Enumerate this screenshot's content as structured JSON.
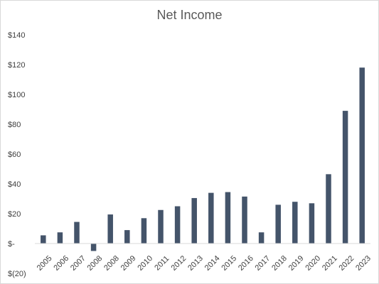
{
  "chart_data": {
    "type": "bar",
    "title": "Net Income",
    "xlabel": "",
    "ylabel": "",
    "categories": [
      "2005",
      "2006",
      "2007",
      "2008",
      "2008",
      "2009",
      "2010",
      "2011",
      "2012",
      "2013",
      "2014",
      "2015",
      "2016",
      "2017",
      "2018",
      "2019",
      "2020",
      "2021",
      "2022",
      "2023"
    ],
    "values": [
      5.5,
      7.5,
      14.5,
      -5,
      19.5,
      9,
      17,
      22.5,
      25,
      30.5,
      34,
      34.5,
      31.5,
      7.5,
      26,
      28,
      27,
      46.5,
      89,
      118
    ],
    "ylim": [
      -20,
      140
    ],
    "yticks": [
      -20,
      0,
      20,
      40,
      60,
      80,
      100,
      120,
      140
    ],
    "ytick_labels": [
      "$(20)",
      "$-",
      "$20",
      "$40",
      "$60",
      "$80",
      "$100",
      "$120",
      "$140"
    ],
    "bar_color": "#44546a",
    "axis_color": "#d9d9d9",
    "label_color": "#404040",
    "title_color": "#595959",
    "grid": false,
    "legend": "none"
  }
}
